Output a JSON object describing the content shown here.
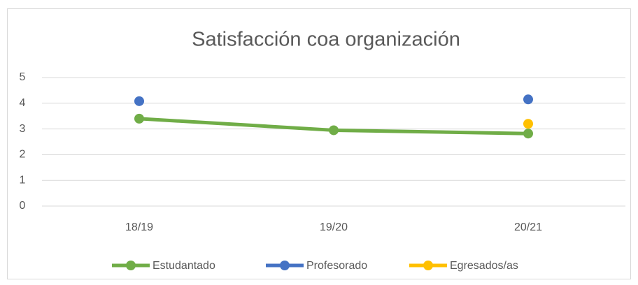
{
  "chart_data": {
    "type": "line",
    "title": "Satisfacción coa organización",
    "categories": [
      "18/19",
      "19/20",
      "20/21"
    ],
    "series": [
      {
        "name": "Estudantado",
        "color": "#70ad47",
        "values": [
          3.4,
          2.95,
          2.82
        ]
      },
      {
        "name": "Profesorado",
        "color": "#4472c4",
        "values": [
          4.08,
          null,
          4.15
        ]
      },
      {
        "name": "Egresados/as",
        "color": "#ffc000",
        "values": [
          null,
          null,
          3.2
        ]
      }
    ],
    "ylim": [
      0,
      5
    ],
    "yticks": [
      0,
      1,
      2,
      3,
      4,
      5
    ],
    "grid": true,
    "legend": "bottom"
  }
}
